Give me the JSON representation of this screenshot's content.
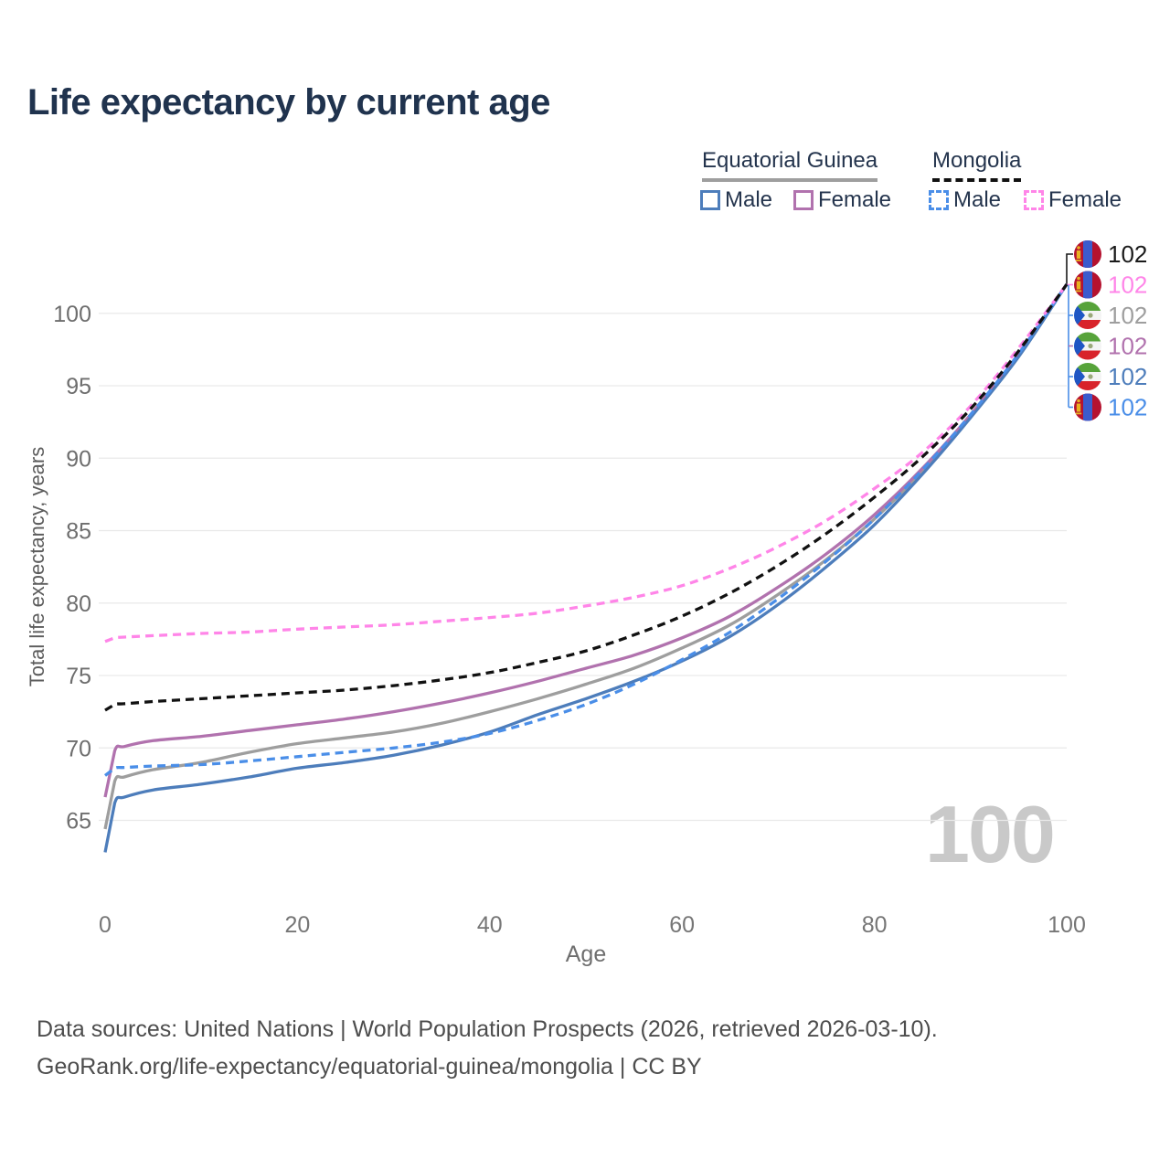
{
  "title": "Life expectancy by current age",
  "legend": {
    "groups": [
      {
        "name": "Equatorial Guinea",
        "line_style": "solid",
        "underline_color": "#9e9e9e",
        "items": [
          {
            "label": "Male",
            "color": "#4d7dbb",
            "dashed": false
          },
          {
            "label": "Female",
            "color": "#b172ae",
            "dashed": false
          }
        ]
      },
      {
        "name": "Mongolia",
        "line_style": "dashed",
        "underline_color": "#111111",
        "items": [
          {
            "label": "Male",
            "color": "#4a8ee8",
            "dashed": true
          },
          {
            "label": "Female",
            "color": "#ff85e8",
            "dashed": true
          }
        ]
      }
    ]
  },
  "watermark": "100",
  "footer": {
    "line1": "Data sources: United Nations | World Population Prospects (2026, retrieved 2026-03-10).",
    "line2": "GeoRank.org/life-expectancy/equatorial-guinea/mongolia | CC BY"
  },
  "chart_data": {
    "type": "line",
    "title": "Life expectancy by current age",
    "xlabel": "Age",
    "ylabel": "Total life expectancy, years",
    "xlim": [
      0,
      100
    ],
    "ylim": [
      62,
      103
    ],
    "x_ticks": [
      0,
      20,
      40,
      60,
      80,
      100
    ],
    "y_ticks": [
      65,
      70,
      75,
      80,
      85,
      90,
      95,
      100
    ],
    "grid": "horizontal-only",
    "legend_position": "top-right",
    "series": [
      {
        "id": "eg-all",
        "name": "Equatorial Guinea (both sexes)",
        "country": "Equatorial Guinea",
        "color": "#9e9e9e",
        "dashed": false,
        "points": [
          [
            0,
            64.4
          ],
          [
            1,
            67.7
          ],
          [
            2,
            68.0
          ],
          [
            5,
            68.5
          ],
          [
            10,
            69.0
          ],
          [
            15,
            69.7
          ],
          [
            20,
            70.3
          ],
          [
            25,
            70.7
          ],
          [
            30,
            71.1
          ],
          [
            35,
            71.7
          ],
          [
            40,
            72.5
          ],
          [
            45,
            73.4
          ],
          [
            50,
            74.4
          ],
          [
            55,
            75.5
          ],
          [
            60,
            76.9
          ],
          [
            65,
            78.5
          ],
          [
            70,
            80.6
          ],
          [
            75,
            83.0
          ],
          [
            80,
            85.8
          ],
          [
            85,
            89.1
          ],
          [
            90,
            92.9
          ],
          [
            95,
            97.1
          ],
          [
            100,
            102
          ]
        ]
      },
      {
        "id": "eg-female",
        "name": "Equatorial Guinea Female",
        "country": "Equatorial Guinea",
        "color": "#b172ae",
        "dashed": false,
        "points": [
          [
            0,
            66.6
          ],
          [
            1,
            69.8
          ],
          [
            2,
            70.1
          ],
          [
            5,
            70.5
          ],
          [
            10,
            70.8
          ],
          [
            15,
            71.2
          ],
          [
            20,
            71.6
          ],
          [
            25,
            72.0
          ],
          [
            30,
            72.5
          ],
          [
            35,
            73.1
          ],
          [
            40,
            73.8
          ],
          [
            45,
            74.6
          ],
          [
            50,
            75.5
          ],
          [
            55,
            76.4
          ],
          [
            60,
            77.6
          ],
          [
            65,
            79.1
          ],
          [
            70,
            81.1
          ],
          [
            75,
            83.4
          ],
          [
            80,
            86.1
          ],
          [
            85,
            89.3
          ],
          [
            90,
            93.0
          ],
          [
            95,
            97.2
          ],
          [
            100,
            102
          ]
        ]
      },
      {
        "id": "eg-male",
        "name": "Equatorial Guinea Male",
        "country": "Equatorial Guinea",
        "color": "#4d7dbb",
        "dashed": false,
        "points": [
          [
            0,
            62.8
          ],
          [
            1,
            66.2
          ],
          [
            2,
            66.6
          ],
          [
            5,
            67.1
          ],
          [
            10,
            67.5
          ],
          [
            15,
            68.0
          ],
          [
            20,
            68.6
          ],
          [
            25,
            69.0
          ],
          [
            30,
            69.5
          ],
          [
            35,
            70.2
          ],
          [
            40,
            71.1
          ],
          [
            45,
            72.3
          ],
          [
            50,
            73.4
          ],
          [
            55,
            74.6
          ],
          [
            60,
            76.0
          ],
          [
            65,
            77.7
          ],
          [
            70,
            79.9
          ],
          [
            75,
            82.5
          ],
          [
            80,
            85.4
          ],
          [
            85,
            88.9
          ],
          [
            90,
            92.8
          ],
          [
            95,
            97.0
          ],
          [
            100,
            102
          ]
        ]
      },
      {
        "id": "mn-male",
        "name": "Mongolia Male",
        "country": "Mongolia",
        "color": "#4a8ee8",
        "dashed": true,
        "points": [
          [
            0,
            68.1
          ],
          [
            1,
            68.6
          ],
          [
            2,
            68.65
          ],
          [
            5,
            68.75
          ],
          [
            10,
            68.85
          ],
          [
            15,
            69.1
          ],
          [
            20,
            69.4
          ],
          [
            25,
            69.7
          ],
          [
            30,
            70.0
          ],
          [
            35,
            70.4
          ],
          [
            40,
            71.0
          ],
          [
            45,
            71.9
          ],
          [
            50,
            73.0
          ],
          [
            55,
            74.4
          ],
          [
            60,
            76.1
          ],
          [
            65,
            78.0
          ],
          [
            70,
            80.3
          ],
          [
            75,
            82.9
          ],
          [
            80,
            85.8
          ],
          [
            85,
            89.2
          ],
          [
            90,
            93.0
          ],
          [
            95,
            97.2
          ],
          [
            100,
            102
          ]
        ]
      },
      {
        "id": "mn-female",
        "name": "Mongolia Female",
        "country": "Mongolia",
        "color": "#ff85e8",
        "dashed": true,
        "points": [
          [
            0,
            77.35
          ],
          [
            1,
            77.6
          ],
          [
            2,
            77.65
          ],
          [
            5,
            77.75
          ],
          [
            10,
            77.9
          ],
          [
            15,
            78.0
          ],
          [
            20,
            78.2
          ],
          [
            25,
            78.35
          ],
          [
            30,
            78.5
          ],
          [
            35,
            78.75
          ],
          [
            40,
            79.0
          ],
          [
            45,
            79.3
          ],
          [
            50,
            79.8
          ],
          [
            55,
            80.4
          ],
          [
            60,
            81.2
          ],
          [
            65,
            82.4
          ],
          [
            70,
            83.9
          ],
          [
            75,
            85.7
          ],
          [
            80,
            87.9
          ],
          [
            85,
            90.4
          ],
          [
            90,
            93.6
          ],
          [
            95,
            97.6
          ],
          [
            100,
            102
          ]
        ]
      },
      {
        "id": "mn-all",
        "name": "Mongolia (both sexes)",
        "country": "Mongolia",
        "color": "#111111",
        "dashed": true,
        "points": [
          [
            0,
            72.6
          ],
          [
            1,
            73.0
          ],
          [
            2,
            73.05
          ],
          [
            5,
            73.2
          ],
          [
            10,
            73.4
          ],
          [
            15,
            73.6
          ],
          [
            20,
            73.8
          ],
          [
            25,
            74.0
          ],
          [
            30,
            74.3
          ],
          [
            35,
            74.7
          ],
          [
            40,
            75.2
          ],
          [
            45,
            75.9
          ],
          [
            50,
            76.7
          ],
          [
            55,
            77.8
          ],
          [
            60,
            79.1
          ],
          [
            65,
            80.7
          ],
          [
            70,
            82.6
          ],
          [
            75,
            84.8
          ],
          [
            80,
            87.3
          ],
          [
            85,
            90.1
          ],
          [
            90,
            93.4
          ],
          [
            95,
            97.4
          ],
          [
            100,
            102
          ]
        ]
      }
    ],
    "end_labels": [
      {
        "value": "102",
        "flag": "mongolia",
        "color": "#1a1a1a"
      },
      {
        "value": "102",
        "flag": "mongolia",
        "color": "#ff85e8"
      },
      {
        "value": "102",
        "flag": "equatorial-guinea",
        "color": "#9e9e9e"
      },
      {
        "value": "102",
        "flag": "equatorial-guinea",
        "color": "#b172ae"
      },
      {
        "value": "102",
        "flag": "equatorial-guinea",
        "color": "#4d7dbb"
      },
      {
        "value": "102",
        "flag": "mongolia",
        "color": "#4a8ee8"
      }
    ]
  }
}
